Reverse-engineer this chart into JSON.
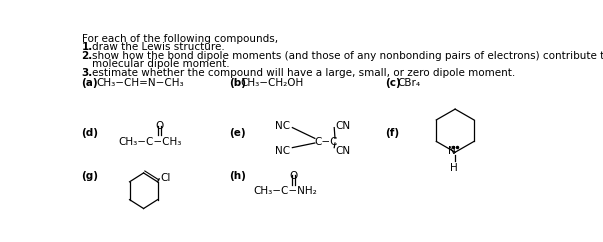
{
  "bg_color": "#ffffff",
  "text_color": "#000000",
  "line1": "For each of the following compounds,",
  "line2_num": "1.",
  "line2_txt": "draw the Lewis structure.",
  "line3_num": "2.",
  "line3_txt": "show how the bond dipole moments (and those of any nonbonding pairs of electrons) contribute to the",
  "line3b_txt": "molecular dipole moment.",
  "line4_num": "3.",
  "line4_txt": "estimate whether the compound will have a large, small, or zero dipole moment.",
  "fs_body": 7.5,
  "fs_formula": 7.5,
  "fs_label": 7.5
}
